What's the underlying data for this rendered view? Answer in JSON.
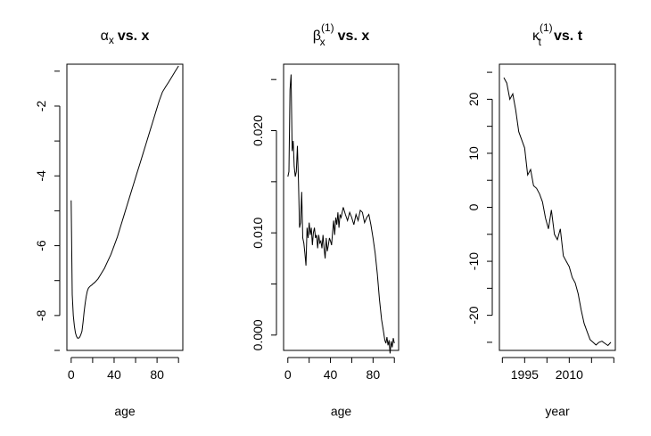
{
  "chart_data": [
    {
      "type": "line",
      "title": {
        "main": "α",
        "sub": "x",
        "sup": "",
        "rest": "vs. x"
      },
      "xlabel": "age",
      "ylabel": "",
      "xlim": [
        -4,
        104
      ],
      "ylim": [
        -9.0,
        -0.8
      ],
      "xticks": [
        0,
        40,
        80
      ],
      "yticks": [
        -8,
        -6,
        -4,
        -2
      ],
      "x": [
        0,
        1,
        2,
        3,
        4,
        5,
        6,
        7,
        8,
        9,
        10,
        11,
        12,
        13,
        14,
        15,
        16,
        17,
        18,
        19,
        20,
        22,
        25,
        28,
        31,
        34,
        37,
        40,
        43,
        46,
        49,
        52,
        55,
        58,
        61,
        64,
        67,
        70,
        73,
        76,
        79,
        82,
        85,
        88,
        91,
        94,
        97,
        100
      ],
      "y": [
        -4.7,
        -7.4,
        -8.0,
        -8.3,
        -8.5,
        -8.6,
        -8.65,
        -8.65,
        -8.62,
        -8.55,
        -8.45,
        -8.2,
        -7.9,
        -7.65,
        -7.45,
        -7.3,
        -7.22,
        -7.18,
        -7.15,
        -7.13,
        -7.1,
        -7.05,
        -6.95,
        -6.8,
        -6.65,
        -6.45,
        -6.25,
        -6.0,
        -5.75,
        -5.45,
        -5.15,
        -4.85,
        -4.55,
        -4.25,
        -3.95,
        -3.65,
        -3.35,
        -3.05,
        -2.75,
        -2.45,
        -2.15,
        -1.85,
        -1.6,
        -1.45,
        -1.3,
        -1.15,
        -1.0,
        -0.85
      ]
    },
    {
      "type": "line",
      "title": {
        "main": "β",
        "sub": "x",
        "sup": "(1)",
        "rest": "vs. x"
      },
      "xlabel": "age",
      "ylabel": "",
      "xlim": [
        -4,
        104
      ],
      "ylim": [
        -0.0015,
        0.0265
      ],
      "xticks": [
        0,
        40,
        80
      ],
      "yticks": [
        0.0,
        0.01,
        0.02
      ],
      "ytick_labels": [
        "0.000",
        "0.010",
        "0.020"
      ],
      "x": [
        0,
        1,
        2,
        3,
        4,
        5,
        6,
        7,
        8,
        9,
        10,
        11,
        12,
        13,
        14,
        15,
        16,
        17,
        18,
        19,
        20,
        21,
        22,
        23,
        24,
        25,
        26,
        27,
        28,
        29,
        30,
        31,
        32,
        33,
        34,
        35,
        36,
        37,
        38,
        39,
        40,
        41,
        42,
        43,
        44,
        45,
        46,
        47,
        48,
        49,
        50,
        52,
        54,
        56,
        58,
        60,
        62,
        64,
        66,
        68,
        70,
        72,
        74,
        76,
        78,
        80,
        82,
        84,
        86,
        88,
        90,
        91,
        92,
        93,
        94,
        95,
        96,
        97,
        98,
        99,
        100
      ],
      "y": [
        0.0155,
        0.016,
        0.024,
        0.0255,
        0.018,
        0.019,
        0.0165,
        0.0155,
        0.016,
        0.0185,
        0.015,
        0.0105,
        0.011,
        0.014,
        0.0095,
        0.009,
        0.008,
        0.0068,
        0.0105,
        0.0095,
        0.011,
        0.0098,
        0.0105,
        0.0088,
        0.01,
        0.0105,
        0.0095,
        0.0098,
        0.0085,
        0.0098,
        0.009,
        0.0092,
        0.0085,
        0.0098,
        0.0085,
        0.0075,
        0.0095,
        0.0082,
        0.0088,
        0.0095,
        0.0092,
        0.0088,
        0.01,
        0.0112,
        0.0098,
        0.0115,
        0.0108,
        0.012,
        0.0105,
        0.0118,
        0.0115,
        0.0125,
        0.0118,
        0.0112,
        0.012,
        0.0115,
        0.0108,
        0.0118,
        0.0112,
        0.0122,
        0.012,
        0.011,
        0.0115,
        0.0118,
        0.0108,
        0.0095,
        0.008,
        0.006,
        0.0035,
        0.0015,
        0.0002,
        -0.0005,
        -0.0008,
        -0.0002,
        -0.001,
        -0.0005,
        -0.0018,
        -0.0006,
        -0.0012,
        -0.0003,
        -0.0008
      ]
    },
    {
      "type": "line",
      "title": {
        "main": "κ",
        "sub": "t",
        "sup": "(1)",
        "rest": "vs. t"
      },
      "xlabel": "year",
      "ylabel": "",
      "xlim": [
        1986.5,
        2025.5
      ],
      "ylim": [
        -26.5,
        26.5
      ],
      "xticks": [
        1995,
        2010
      ],
      "yticks": [
        -20,
        -10,
        0,
        10,
        20
      ],
      "x": [
        1988,
        1989,
        1990,
        1991,
        1992,
        1993,
        1994,
        1995,
        1996,
        1997,
        1998,
        1999,
        2000,
        2001,
        2002,
        2003,
        2004,
        2005,
        2006,
        2007,
        2008,
        2009,
        2010,
        2011,
        2012,
        2013,
        2014,
        2015,
        2016,
        2017,
        2018,
        2019,
        2020,
        2021,
        2022,
        2023,
        2024
      ],
      "y": [
        24,
        23,
        20,
        21,
        18,
        14,
        12.5,
        11,
        6,
        7,
        4,
        3.5,
        2.5,
        1,
        -2,
        -4,
        -0.5,
        -5,
        -6,
        -4,
        -9,
        -10,
        -11,
        -13,
        -14,
        -16,
        -19,
        -21.5,
        -23,
        -24.5,
        -25,
        -25.5,
        -25,
        -24.8,
        -25.2,
        -25.6,
        -25
      ]
    }
  ]
}
